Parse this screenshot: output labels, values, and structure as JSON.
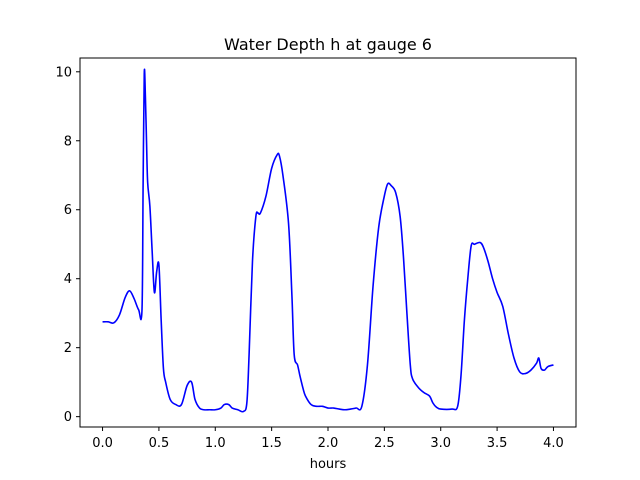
{
  "chart_data": {
    "type": "line",
    "title": "Water Depth h at gauge 6",
    "xlabel": "hours",
    "ylabel": "",
    "xlim": [
      -0.2,
      4.2
    ],
    "ylim": [
      -0.3,
      10.4
    ],
    "xticks": [
      0.0,
      0.5,
      1.0,
      1.5,
      2.0,
      2.5,
      3.0,
      3.5,
      4.0
    ],
    "xtick_labels": [
      "0.0",
      "0.5",
      "1.0",
      "1.5",
      "2.0",
      "2.5",
      "3.0",
      "3.5",
      "4.0"
    ],
    "yticks": [
      0,
      2,
      4,
      6,
      8,
      10
    ],
    "ytick_labels": [
      "0",
      "2",
      "4",
      "6",
      "8",
      "10"
    ],
    "grid": false,
    "series": [
      {
        "color": "#0000ff",
        "x": [
          0.0,
          0.05,
          0.1,
          0.15,
          0.2,
          0.24,
          0.28,
          0.32,
          0.35,
          0.36,
          0.37,
          0.38,
          0.39,
          0.4,
          0.42,
          0.44,
          0.46,
          0.48,
          0.5,
          0.52,
          0.54,
          0.56,
          0.6,
          0.65,
          0.7,
          0.75,
          0.79,
          0.82,
          0.86,
          0.9,
          0.95,
          1.0,
          1.05,
          1.08,
          1.12,
          1.15,
          1.2,
          1.25,
          1.28,
          1.3,
          1.33,
          1.36,
          1.38,
          1.4,
          1.45,
          1.5,
          1.55,
          1.57,
          1.6,
          1.65,
          1.68,
          1.7,
          1.73,
          1.75,
          1.78,
          1.8,
          1.85,
          1.9,
          1.95,
          2.0,
          2.05,
          2.1,
          2.15,
          2.2,
          2.25,
          2.3,
          2.35,
          2.4,
          2.45,
          2.5,
          2.53,
          2.56,
          2.6,
          2.64,
          2.67,
          2.7,
          2.73,
          2.75,
          2.8,
          2.85,
          2.9,
          2.93,
          2.96,
          3.0,
          3.1,
          3.15,
          3.18,
          3.21,
          3.24,
          3.27,
          3.3,
          3.35,
          3.38,
          3.42,
          3.46,
          3.5,
          3.55,
          3.6,
          3.65,
          3.7,
          3.75,
          3.8,
          3.85,
          3.87,
          3.89,
          3.92,
          3.95,
          4.0
        ],
        "y": [
          2.75,
          2.75,
          2.72,
          2.95,
          3.45,
          3.65,
          3.42,
          3.1,
          3.1,
          6.8,
          9.95,
          9.3,
          8.0,
          6.8,
          6.1,
          4.8,
          3.6,
          4.2,
          4.4,
          2.8,
          1.4,
          1.0,
          0.5,
          0.35,
          0.35,
          0.9,
          1.0,
          0.5,
          0.25,
          0.2,
          0.2,
          0.2,
          0.25,
          0.35,
          0.35,
          0.25,
          0.2,
          0.15,
          0.4,
          1.8,
          4.5,
          5.8,
          5.9,
          5.9,
          6.4,
          7.2,
          7.6,
          7.55,
          7.0,
          5.6,
          3.5,
          1.8,
          1.5,
          1.2,
          0.8,
          0.6,
          0.35,
          0.3,
          0.3,
          0.25,
          0.25,
          0.22,
          0.2,
          0.22,
          0.25,
          0.3,
          1.5,
          3.8,
          5.5,
          6.4,
          6.75,
          6.7,
          6.5,
          5.8,
          4.6,
          3.0,
          1.5,
          1.1,
          0.85,
          0.7,
          0.6,
          0.4,
          0.28,
          0.22,
          0.22,
          0.3,
          1.2,
          2.8,
          4.0,
          4.95,
          5.0,
          5.05,
          4.9,
          4.5,
          4.0,
          3.6,
          3.2,
          2.4,
          1.7,
          1.3,
          1.25,
          1.35,
          1.55,
          1.7,
          1.4,
          1.35,
          1.45,
          1.5
        ]
      }
    ]
  }
}
